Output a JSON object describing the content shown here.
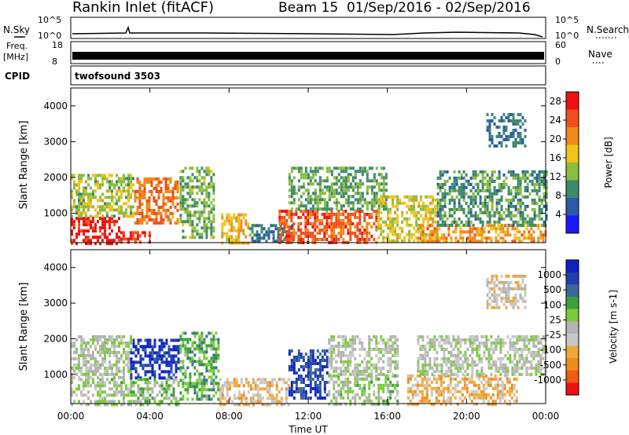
{
  "header": {
    "station": "Rankin Inlet (fitACF)",
    "beam_info": "Beam 15  01/Sep/2016 - 02/Sep/2016"
  },
  "summary": {
    "nsky_label": "N.Sky",
    "nsky_ticks": [
      "10^5",
      "10^0"
    ],
    "nsearch_label": "N.Search",
    "nsearch_ticks": [
      "10^5",
      "10^0"
    ],
    "freq_label": "Freq.",
    "freq_unit": "[MHz]",
    "freq_ticks": [
      "18",
      "8"
    ],
    "nave_label": "Nave",
    "nave_ticks": [
      "60",
      "0"
    ],
    "cpid_label": "CPID",
    "cpid_value": "twofsound 3503"
  },
  "x_axis": {
    "label": "Time UT",
    "ticks": [
      "00:00",
      "04:00",
      "08:00",
      "12:00",
      "16:00",
      "20:00",
      "00:00"
    ]
  },
  "colors": {
    "power": [
      "#1a1aff",
      "#2a5aa8",
      "#3d8a6a",
      "#8cbc3e",
      "#f0c21c",
      "#f08a1c",
      "#f0501c",
      "#f01010"
    ],
    "velocity": [
      "#f01010",
      "#f05a14",
      "#f08c1c",
      "#f0a83c",
      "#c8c8c8",
      "#b4b4b4",
      "#7acc3a",
      "#3ca03c",
      "#3a6a9a",
      "#2040b0",
      "#1020c8"
    ]
  },
  "chart_data": [
    {
      "type": "heatmap",
      "panel": "power",
      "ylabel": "Slant Range [km]",
      "yticks": [
        "1000",
        "2000",
        "3000",
        "4000"
      ],
      "ylim": [
        180,
        4500
      ],
      "xlim": [
        0,
        24
      ],
      "xlabel": "Time UT",
      "colorbar_label": "Power [dB]",
      "colorbar_ticks": [
        "4",
        "8",
        "12",
        "16",
        "20",
        "24",
        "28"
      ],
      "colorbar_range": [
        0,
        30
      ],
      "regions": [
        {
          "t0": 0.0,
          "t1": 2.5,
          "r0": 180,
          "r1": 900,
          "value": 28
        },
        {
          "t0": 2.5,
          "t1": 4.0,
          "r0": 180,
          "r1": 500,
          "value": 26
        },
        {
          "t0": 3.2,
          "t1": 5.4,
          "r0": 700,
          "r1": 2000,
          "value": 22
        },
        {
          "t0": 0.0,
          "t1": 3.2,
          "r0": 900,
          "r1": 2100,
          "value": 14
        },
        {
          "t0": 5.5,
          "t1": 7.2,
          "r0": 300,
          "r1": 2300,
          "value": 12
        },
        {
          "t0": 7.6,
          "t1": 9.0,
          "r0": 180,
          "r1": 1000,
          "value": 18
        },
        {
          "t0": 9.0,
          "t1": 11.2,
          "r0": 200,
          "r1": 700,
          "value": 8
        },
        {
          "t0": 10.5,
          "t1": 15.5,
          "r0": 180,
          "r1": 1100,
          "value": 24
        },
        {
          "t0": 11.0,
          "t1": 16.0,
          "r0": 1100,
          "r1": 2300,
          "value": 11
        },
        {
          "t0": 15.5,
          "t1": 18.5,
          "r0": 200,
          "r1": 1500,
          "value": 16
        },
        {
          "t0": 17.5,
          "t1": 24.0,
          "r0": 180,
          "r1": 700,
          "value": 20
        },
        {
          "t0": 18.5,
          "t1": 24.0,
          "r0": 700,
          "r1": 2200,
          "value": 10
        },
        {
          "t0": 21.0,
          "t1": 23.0,
          "r0": 2900,
          "r1": 3800,
          "value": 8
        }
      ]
    },
    {
      "type": "heatmap",
      "panel": "velocity",
      "ylabel": "Slant Range [km]",
      "yticks": [
        "1000",
        "2000",
        "3000",
        "4000"
      ],
      "ylim": [
        180,
        4500
      ],
      "xlim": [
        0,
        24
      ],
      "xlabel": "Time UT",
      "colorbar_label": "Velocity [m s-1]",
      "colorbar_ticks": [
        "1000",
        "500",
        "100",
        "25",
        "-25",
        "-100",
        "-500",
        "-1000"
      ],
      "colorbar_range": [
        -1000,
        1000
      ],
      "regions": [
        {
          "t0": 0.0,
          "t1": 3.0,
          "r0": 180,
          "r1": 900,
          "value": 60
        },
        {
          "t0": 0.0,
          "t1": 3.0,
          "r0": 900,
          "r1": 2100,
          "value": 0
        },
        {
          "t0": 3.0,
          "t1": 5.5,
          "r0": 900,
          "r1": 2000,
          "value": 800
        },
        {
          "t0": 3.0,
          "t1": 5.5,
          "r0": 180,
          "r1": 900,
          "value": 150
        },
        {
          "t0": 5.5,
          "t1": 7.5,
          "r0": 300,
          "r1": 2200,
          "value": 300
        },
        {
          "t0": 7.5,
          "t1": 11.0,
          "r0": 180,
          "r1": 900,
          "value": -300
        },
        {
          "t0": 11.0,
          "t1": 13.0,
          "r0": 300,
          "r1": 1700,
          "value": 700
        },
        {
          "t0": 13.0,
          "t1": 16.5,
          "r0": 180,
          "r1": 1000,
          "value": 120
        },
        {
          "t0": 13.0,
          "t1": 16.5,
          "r0": 1000,
          "r1": 2100,
          "value": 0
        },
        {
          "t0": 17.0,
          "t1": 22.5,
          "r0": 180,
          "r1": 1000,
          "value": -350
        },
        {
          "t0": 17.5,
          "t1": 24.0,
          "r0": 1000,
          "r1": 2100,
          "value": 0
        },
        {
          "t0": 21.0,
          "t1": 23.0,
          "r0": 2900,
          "r1": 3800,
          "value": -200
        }
      ]
    }
  ]
}
